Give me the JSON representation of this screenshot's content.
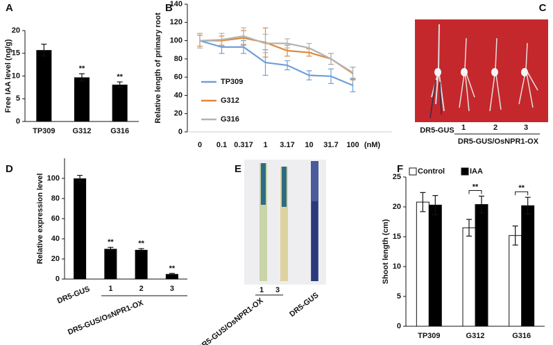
{
  "chart_data": [
    {
      "type": "bar",
      "panel": "A",
      "ylabel": "Free IAA  level (ng/g)",
      "categories": [
        "TP309",
        "G312",
        "G316"
      ],
      "values": [
        15.7,
        9.7,
        8.1
      ],
      "errors": [
        1.3,
        0.8,
        0.6
      ],
      "significance": [
        null,
        "**",
        "**"
      ],
      "color": "#000000",
      "ylim": [
        0,
        20
      ],
      "yticks": [
        0,
        5,
        10,
        15,
        20
      ]
    },
    {
      "type": "line",
      "panel": "B",
      "ylabel": "Relative length of  primary root",
      "categories": [
        "0",
        "0.1",
        "0.317",
        "1",
        "3.17",
        "10",
        "31.7",
        "100"
      ],
      "x_unit": "(nM)",
      "series": [
        {
          "name": "TP309",
          "color": "#6f9fd8",
          "values": [
            100,
            93,
            93,
            76,
            73,
            62,
            61,
            51
          ],
          "errors": [
            8,
            7,
            7,
            14,
            5,
            5,
            8,
            7
          ]
        },
        {
          "name": "G312",
          "color": "#e0883a",
          "values": [
            100,
            100,
            103,
            98,
            89,
            87,
            80,
            64
          ],
          "errors": [
            6,
            5,
            8,
            16,
            6,
            4,
            6,
            7
          ]
        },
        {
          "name": "G316",
          "color": "#b3b3b3",
          "values": [
            100,
            101,
            105,
            97,
            97,
            92,
            80,
            65
          ],
          "errors": [
            8,
            7,
            9,
            10,
            5,
            5,
            6,
            6
          ]
        }
      ],
      "ylim": [
        0,
        140
      ],
      "yticks": [
        0,
        20,
        40,
        60,
        80,
        100,
        120,
        140
      ]
    },
    {
      "type": "bar",
      "panel": "D",
      "ylabel": "Relative expression level",
      "categories": [
        "DR5-GUS",
        "1",
        "2",
        "3"
      ],
      "values": [
        100,
        30,
        29,
        5
      ],
      "errors": [
        3,
        1.5,
        1.2,
        0.6
      ],
      "significance": [
        null,
        "**",
        "**",
        "**"
      ],
      "group_label": "DR5-GUS/OsNPR1-OX",
      "color": "#000000",
      "ylim": [
        0,
        120
      ],
      "yticks": [
        0,
        20,
        40,
        60,
        80,
        100
      ]
    },
    {
      "type": "bar",
      "panel": "F",
      "ylabel": "Shoot length (cm)",
      "categories": [
        "TP309",
        "G312",
        "G316"
      ],
      "series": [
        {
          "name": "Control",
          "color": "#ffffff",
          "values": [
            20.8,
            16.5,
            15.2
          ],
          "errors": [
            1.6,
            1.4,
            1.6
          ]
        },
        {
          "name": "IAA",
          "color": "#000000",
          "values": [
            20.3,
            20.4,
            20.2
          ],
          "errors": [
            1.6,
            1.4,
            1.4
          ]
        }
      ],
      "significance": [
        null,
        "**",
        "**"
      ],
      "ylim": [
        0,
        25
      ],
      "yticks": [
        0,
        5,
        10,
        15,
        20,
        25
      ]
    }
  ],
  "images": [
    {
      "panel": "C",
      "labels": [
        "DR5-GUS",
        "1",
        "2",
        "3"
      ],
      "group_label": "DR5-GUS/OsNPR1-OX"
    },
    {
      "panel": "E",
      "labels": [
        "1",
        "3",
        "DR5-GUS"
      ],
      "group_label": "DR5-GUS/OsNPR1-OX"
    }
  ]
}
